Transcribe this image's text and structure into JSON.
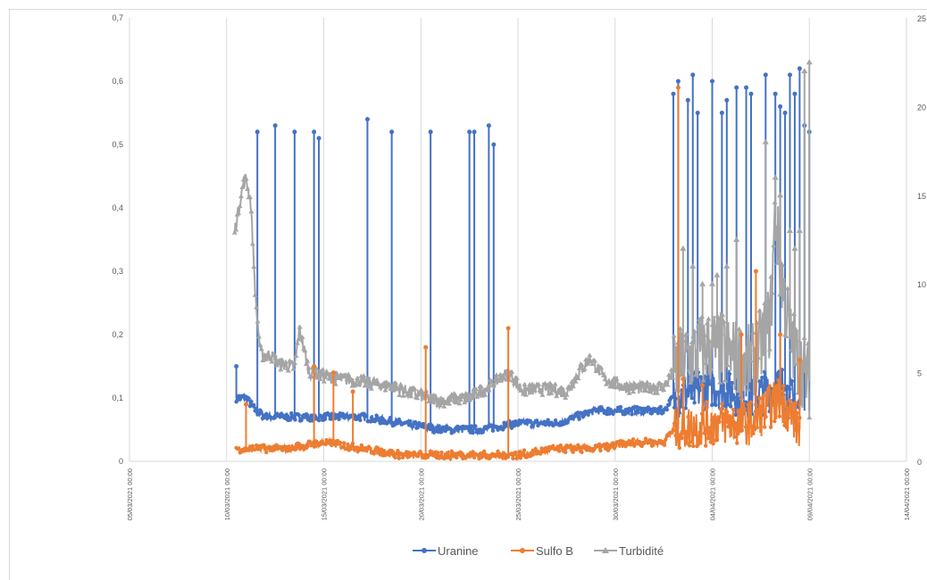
{
  "chart_data": {
    "type": "line",
    "title": "",
    "xlabel": "",
    "ylabel_left": "",
    "ylabel_right": "",
    "ylim_left": [
      0,
      0.7
    ],
    "ylim_right": [
      0,
      25
    ],
    "yticks_left": [
      "0",
      "0,1",
      "0,2",
      "0,3",
      "0,4",
      "0,5",
      "0,6",
      "0,7"
    ],
    "yticks_right": [
      "0",
      "5",
      "10",
      "15",
      "20",
      "25"
    ],
    "xticks": [
      "05/03/2021 00:00",
      "10/03/2021 00:00",
      "15/03/2021 00:00",
      "20/03/2021 00:00",
      "25/03/2021 00:00",
      "30/03/2021 00:00",
      "04/04/2021 00:00",
      "09/04/2021 00:00",
      "14/04/2021 00:00"
    ],
    "grid": "vertical",
    "legend_position": "bottom",
    "series": [
      {
        "name": "Uranine",
        "axis": "left",
        "color": "#4472c4",
        "marker": "circle",
        "baseline": [
          [
            "10/03/2021 12:00",
            0.1
          ],
          [
            "11/03/2021 00:00",
            0.1
          ],
          [
            "11/03/2021 12:00",
            0.08
          ],
          [
            "12/03/2021 00:00",
            0.07
          ],
          [
            "13/03/2021 00:00",
            0.07
          ],
          [
            "15/03/2021 00:00",
            0.07
          ],
          [
            "17/03/2021 00:00",
            0.07
          ],
          [
            "19/03/2021 00:00",
            0.06
          ],
          [
            "21/03/2021 00:00",
            0.05
          ],
          [
            "23/03/2021 00:00",
            0.05
          ],
          [
            "25/03/2021 00:00",
            0.06
          ],
          [
            "27/03/2021 00:00",
            0.06
          ],
          [
            "29/03/2021 00:00",
            0.08
          ],
          [
            "31/03/2021 00:00",
            0.08
          ],
          [
            "01/04/2021 12:00",
            0.08
          ],
          [
            "02/04/2021 00:00",
            0.1
          ],
          [
            "04/04/2021 00:00",
            0.12
          ],
          [
            "06/04/2021 00:00",
            0.1
          ],
          [
            "07/04/2021 12:00",
            0.12
          ],
          [
            "08/04/2021 12:00",
            0.08
          ]
        ],
        "spikes": [
          [
            "10/03/2021 12:00",
            0.15
          ],
          [
            "11/03/2021 14:00",
            0.52
          ],
          [
            "12/03/2021 12:00",
            0.53
          ],
          [
            "13/03/2021 12:00",
            0.52
          ],
          [
            "14/03/2021 12:00",
            0.52
          ],
          [
            "14/03/2021 18:00",
            0.51
          ],
          [
            "17/03/2021 06:00",
            0.54
          ],
          [
            "18/03/2021 12:00",
            0.52
          ],
          [
            "20/03/2021 12:00",
            0.52
          ],
          [
            "22/03/2021 12:00",
            0.52
          ],
          [
            "22/03/2021 18:00",
            0.52
          ],
          [
            "23/03/2021 12:00",
            0.53
          ],
          [
            "23/03/2021 18:00",
            0.5
          ],
          [
            "02/04/2021 00:00",
            0.58
          ],
          [
            "02/04/2021 06:00",
            0.6
          ],
          [
            "02/04/2021 18:00",
            0.57
          ],
          [
            "03/04/2021 00:00",
            0.61
          ],
          [
            "03/04/2021 06:00",
            0.55
          ],
          [
            "04/04/2021 00:00",
            0.6
          ],
          [
            "04/04/2021 12:00",
            0.55
          ],
          [
            "04/04/2021 18:00",
            0.57
          ],
          [
            "05/04/2021 06:00",
            0.59
          ],
          [
            "05/04/2021 18:00",
            0.59
          ],
          [
            "06/04/2021 00:00",
            0.58
          ],
          [
            "06/04/2021 18:00",
            0.61
          ],
          [
            "07/04/2021 06:00",
            0.58
          ],
          [
            "07/04/2021 12:00",
            0.56
          ],
          [
            "07/04/2021 18:00",
            0.55
          ],
          [
            "08/04/2021 00:00",
            0.61
          ],
          [
            "08/04/2021 06:00",
            0.58
          ],
          [
            "08/04/2021 12:00",
            0.62
          ],
          [
            "08/04/2021 18:00",
            0.53
          ],
          [
            "09/04/2021 00:00",
            0.52
          ]
        ]
      },
      {
        "name": "Sulfo B",
        "axis": "left",
        "color": "#ed7d31",
        "marker": "circle",
        "baseline": [
          [
            "10/03/2021 12:00",
            0.02
          ],
          [
            "11/03/2021 12:00",
            0.02
          ],
          [
            "13/03/2021 00:00",
            0.02
          ],
          [
            "15/03/2021 00:00",
            0.03
          ],
          [
            "17/03/2021 00:00",
            0.02
          ],
          [
            "19/03/2021 00:00",
            0.01
          ],
          [
            "21/03/2021 00:00",
            0.01
          ],
          [
            "23/03/2021 00:00",
            0.01
          ],
          [
            "25/03/2021 00:00",
            0.01
          ],
          [
            "27/03/2021 00:00",
            0.02
          ],
          [
            "29/03/2021 00:00",
            0.02
          ],
          [
            "31/03/2021 00:00",
            0.03
          ],
          [
            "01/04/2021 12:00",
            0.03
          ],
          [
            "02/04/2021 00:00",
            0.05
          ],
          [
            "04/04/2021 00:00",
            0.06
          ],
          [
            "06/04/2021 00:00",
            0.06
          ],
          [
            "07/04/2021 12:00",
            0.1
          ],
          [
            "08/04/2021 12:00",
            0.05
          ]
        ],
        "spikes": [
          [
            "11/03/2021 00:00",
            0.09
          ],
          [
            "14/03/2021 12:00",
            0.15
          ],
          [
            "15/03/2021 12:00",
            0.14
          ],
          [
            "16/03/2021 12:00",
            0.11
          ],
          [
            "20/03/2021 06:00",
            0.18
          ],
          [
            "24/03/2021 12:00",
            0.21
          ],
          [
            "02/04/2021 06:00",
            0.59
          ],
          [
            "02/04/2021 12:00",
            0.13
          ],
          [
            "03/04/2021 12:00",
            0.12
          ],
          [
            "05/04/2021 12:00",
            0.2
          ],
          [
            "06/04/2021 06:00",
            0.3
          ],
          [
            "07/04/2021 12:00",
            0.2
          ],
          [
            "08/04/2021 12:00",
            0.16
          ]
        ]
      },
      {
        "name": "Turbidité",
        "axis": "right",
        "color": "#a5a5a5",
        "marker": "triangle",
        "baseline": [
          [
            "10/03/2021 10:00",
            13.0
          ],
          [
            "10/03/2021 14:00",
            14.0
          ],
          [
            "10/03/2021 20:00",
            15.5
          ],
          [
            "11/03/2021 00:00",
            16.0
          ],
          [
            "11/03/2021 06:00",
            14.5
          ],
          [
            "11/03/2021 12:00",
            9.0
          ],
          [
            "11/03/2021 18:00",
            6.0
          ],
          [
            "12/03/2021 06:00",
            6.0
          ],
          [
            "12/03/2021 18:00",
            5.5
          ],
          [
            "13/03/2021 12:00",
            5.3
          ],
          [
            "13/03/2021 18:00",
            7.5
          ],
          [
            "14/03/2021 06:00",
            5.0
          ],
          [
            "15/03/2021 12:00",
            4.7
          ],
          [
            "17/03/2021 00:00",
            4.5
          ],
          [
            "18/03/2021 12:00",
            4.2
          ],
          [
            "20/03/2021 00:00",
            3.7
          ],
          [
            "21/03/2021 00:00",
            3.4
          ],
          [
            "22/03/2021 12:00",
            3.6
          ],
          [
            "23/03/2021 12:00",
            4.2
          ],
          [
            "24/03/2021 12:00",
            5.0
          ],
          [
            "25/03/2021 06:00",
            4.0
          ],
          [
            "26/03/2021 12:00",
            4.1
          ],
          [
            "27/03/2021 12:00",
            3.9
          ],
          [
            "28/03/2021 06:00",
            5.2
          ],
          [
            "28/03/2021 18:00",
            5.8
          ],
          [
            "29/03/2021 12:00",
            4.6
          ],
          [
            "30/03/2021 12:00",
            4.2
          ],
          [
            "31/03/2021 12:00",
            4.1
          ],
          [
            "01/04/2021 12:00",
            4.2
          ],
          [
            "02/04/2021 00:00",
            5.0
          ],
          [
            "03/04/2021 00:00",
            6.0
          ],
          [
            "04/04/2021 00:00",
            6.5
          ],
          [
            "05/04/2021 00:00",
            6.0
          ],
          [
            "06/04/2021 00:00",
            5.5
          ],
          [
            "06/04/2021 12:00",
            6.5
          ],
          [
            "07/04/2021 00:00",
            8.0
          ],
          [
            "07/04/2021 06:00",
            14.0
          ],
          [
            "07/04/2021 12:00",
            11.0
          ],
          [
            "08/04/2021 00:00",
            7.0
          ],
          [
            "08/04/2021 12:00",
            5.5
          ],
          [
            "09/04/2021 00:00",
            4.5
          ]
        ],
        "spikes": [
          [
            "02/04/2021 12:00",
            12.0
          ],
          [
            "03/04/2021 00:00",
            11.0
          ],
          [
            "03/04/2021 12:00",
            10.0
          ],
          [
            "04/04/2021 00:00",
            10.0
          ],
          [
            "04/04/2021 06:00",
            10.5
          ],
          [
            "04/04/2021 18:00",
            11.0
          ],
          [
            "05/04/2021 06:00",
            12.5
          ],
          [
            "06/04/2021 18:00",
            18.0
          ],
          [
            "07/04/2021 06:00",
            16.0
          ],
          [
            "07/04/2021 12:00",
            15.0
          ],
          [
            "08/04/2021 00:00",
            13.0
          ],
          [
            "08/04/2021 06:00",
            12.0
          ],
          [
            "08/04/2021 12:00",
            13.0
          ],
          [
            "08/04/2021 18:00",
            22.0
          ],
          [
            "09/04/2021 00:00",
            22.5
          ]
        ]
      }
    ]
  }
}
